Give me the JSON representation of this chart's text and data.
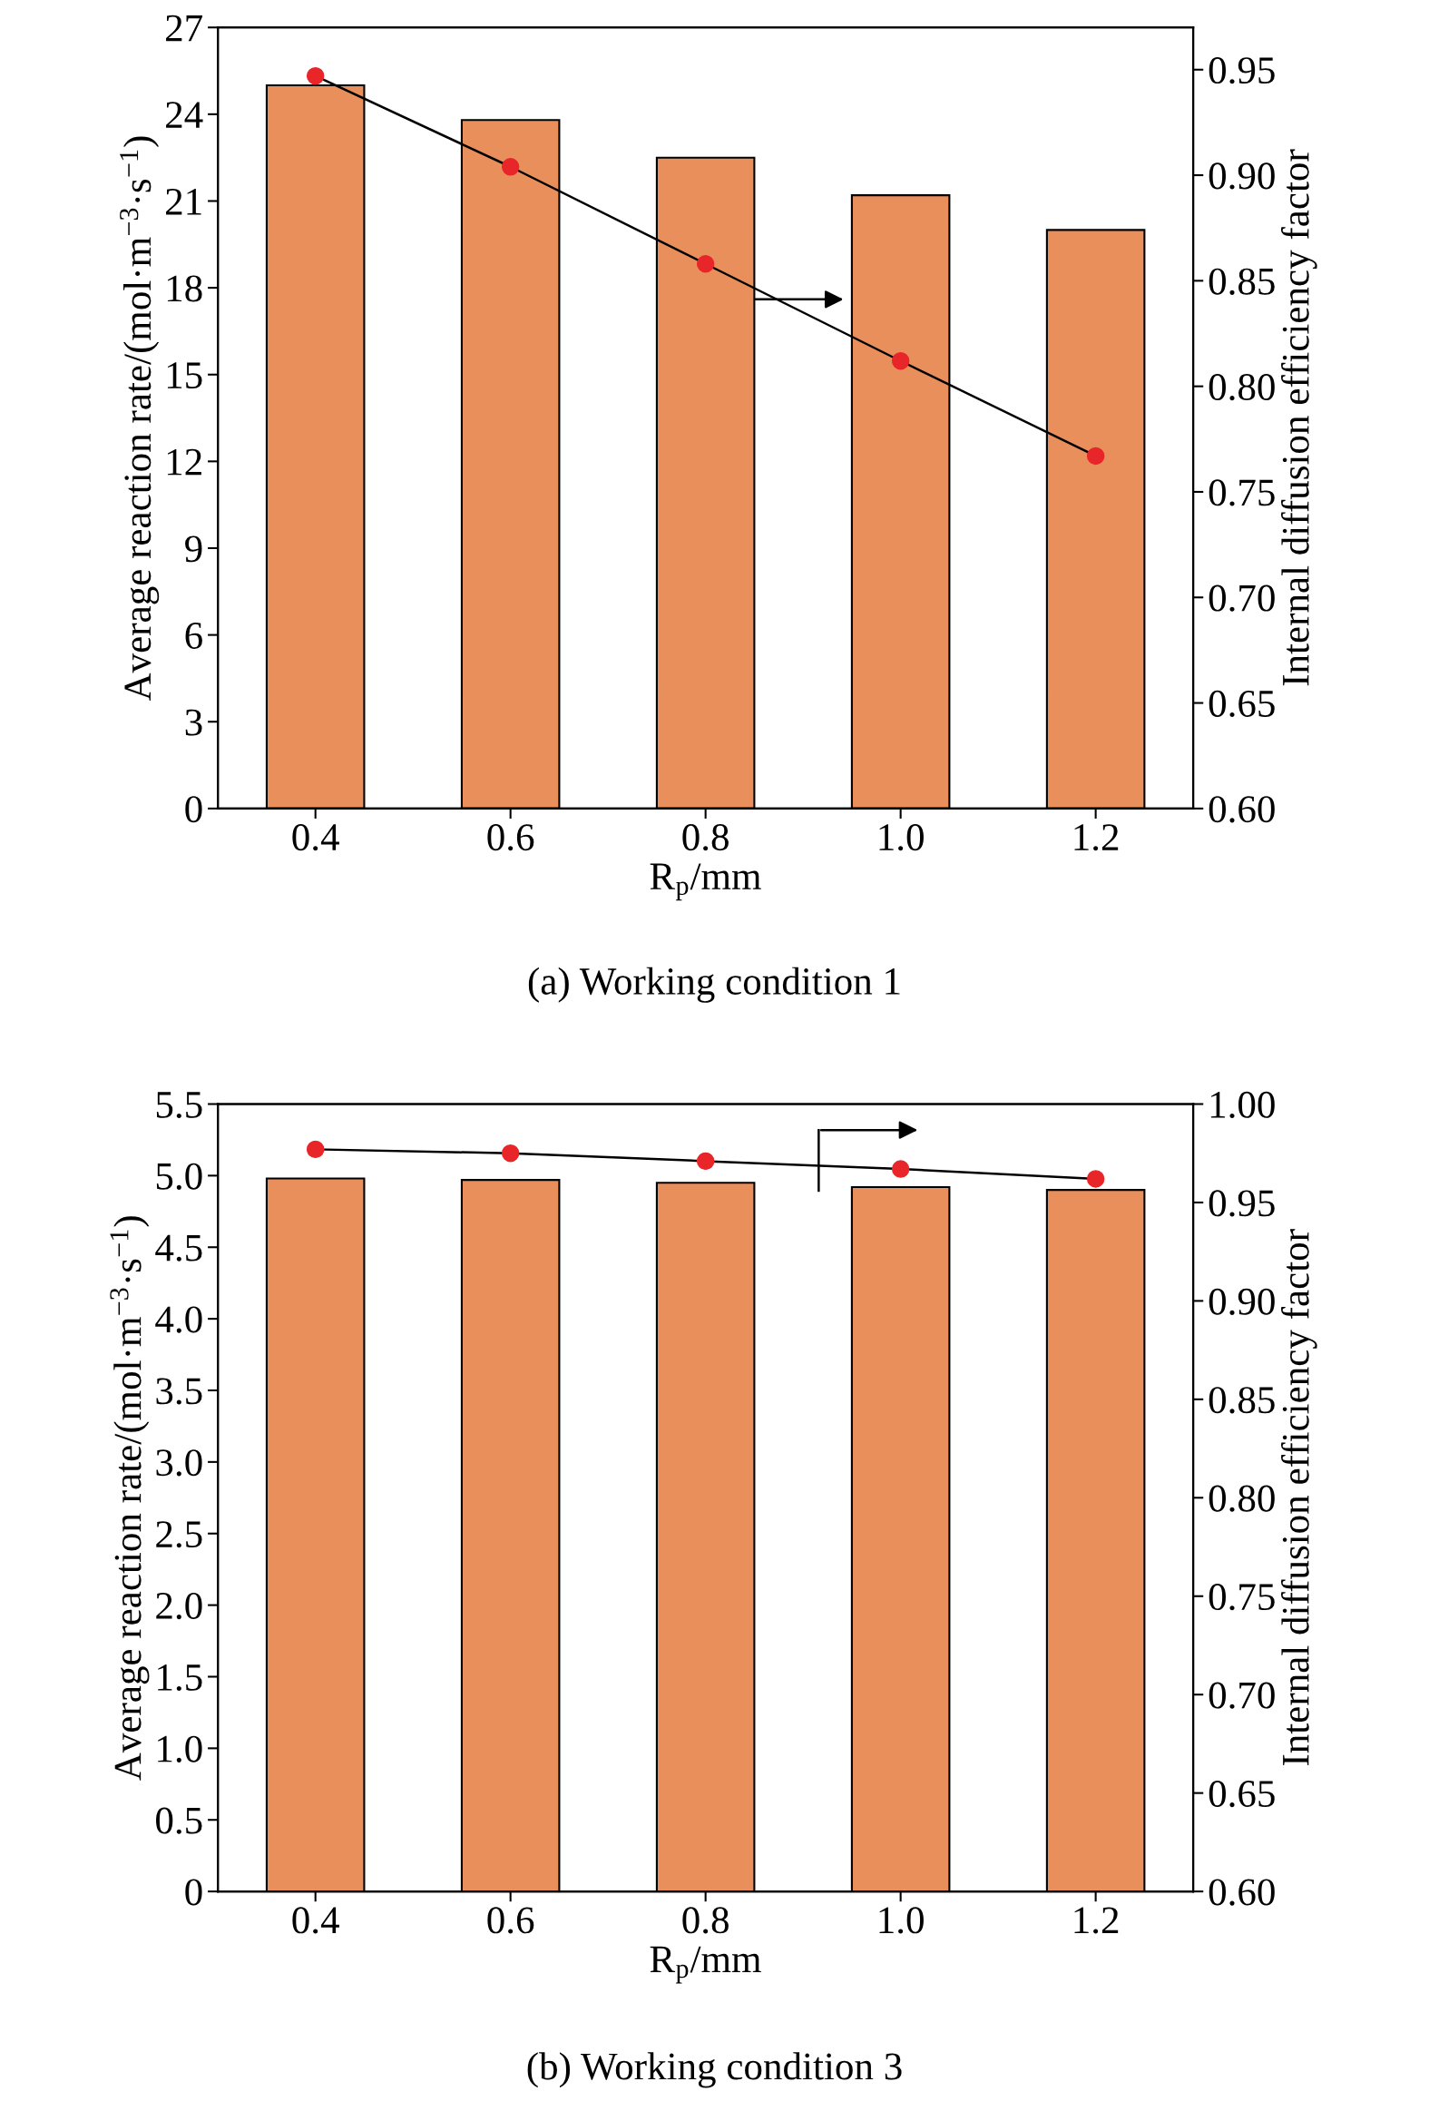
{
  "chart_data": [
    {
      "type": "bar",
      "categories": [
        "0.4",
        "0.6",
        "0.8",
        "1.0",
        "1.2"
      ],
      "xlabel": "R$_{p}$/mm",
      "ylabel": "Average reaction rate/(mol·m$^{−3}$·s$^{−1}$)",
      "y2label": "Internal diffusion efficiency factor",
      "annotations": [
        "(a) Working condition 1"
      ],
      "series": [
        {
          "color": "#e98f5c",
          "values": [
            25.0,
            23.8,
            22.5,
            21.2,
            20.0
          ]
        },
        {
          "type": "line",
          "axis": "y2",
          "color": "#e8262a",
          "values": [
            0.947,
            0.904,
            0.858,
            0.812,
            0.767
          ]
        }
      ],
      "ylim": [
        0,
        27
      ],
      "yticks": [
        0,
        3,
        6,
        9,
        12,
        15,
        18,
        21,
        24,
        27
      ],
      "y2lim": [
        0.6,
        0.97
      ],
      "y2ticks": [
        {
          "value": 0.6,
          "label": "0.60"
        },
        {
          "value": 0.65,
          "label": "0.65"
        },
        {
          "value": 0.7,
          "label": "0.70"
        },
        {
          "value": 0.75,
          "label": "0.75"
        },
        {
          "value": 0.8,
          "label": "0.80"
        },
        {
          "value": 0.85,
          "label": "0.85"
        },
        {
          "value": 0.9,
          "label": "0.90"
        },
        {
          "value": 0.95,
          "label": "0.95"
        }
      ],
      "marker": "circle",
      "grid": false,
      "legend": false
    },
    {
      "type": "bar",
      "categories": [
        "0.4",
        "0.6",
        "0.8",
        "1.0",
        "1.2"
      ],
      "xlabel": "R$_{p}$/mm",
      "ylabel": "Average reaction rate/(mol·m$^{−3}$·s$^{−1}$)",
      "y2label": "Internal diffusion efficiency factor",
      "annotations": [
        "(b) Working condition 3"
      ],
      "series": [
        {
          "color": "#e98f5c",
          "values": [
            4.98,
            4.97,
            4.95,
            4.92,
            4.9
          ]
        },
        {
          "type": "line",
          "axis": "y2",
          "color": "#e8262a",
          "values": [
            0.977,
            0.975,
            0.971,
            0.967,
            0.962
          ]
        }
      ],
      "ylim": [
        0,
        5.5
      ],
      "yticks": [
        0,
        {
          "value": 0.5,
          "label": "0.5"
        },
        {
          "value": 1.0,
          "label": "1.0"
        },
        {
          "value": 1.5,
          "label": "1.5"
        },
        {
          "value": 2.0,
          "label": "2.0"
        },
        {
          "value": 2.5,
          "label": "2.5"
        },
        {
          "value": 3.0,
          "label": "3.0"
        },
        {
          "value": 3.5,
          "label": "3.5"
        },
        {
          "value": 4.0,
          "label": "4.0"
        },
        {
          "value": 4.5,
          "label": "4.5"
        },
        {
          "value": 5.0,
          "label": "5.0"
        },
        {
          "value": 5.5,
          "label": "5.5"
        }
      ],
      "y2lim": [
        0.6,
        1.0
      ],
      "y2ticks": [
        {
          "value": 0.6,
          "label": "0.60"
        },
        {
          "value": 0.65,
          "label": "0.65"
        },
        {
          "value": 0.7,
          "label": "0.70"
        },
        {
          "value": 0.75,
          "label": "0.75"
        },
        {
          "value": 0.8,
          "label": "0.80"
        },
        {
          "value": 0.85,
          "label": "0.85"
        },
        {
          "value": 0.9,
          "label": "0.90"
        },
        {
          "value": 0.95,
          "label": "0.95"
        },
        {
          "value": 1.0,
          "label": "1.00"
        }
      ],
      "marker": "circle",
      "grid": false,
      "legend": false
    }
  ]
}
